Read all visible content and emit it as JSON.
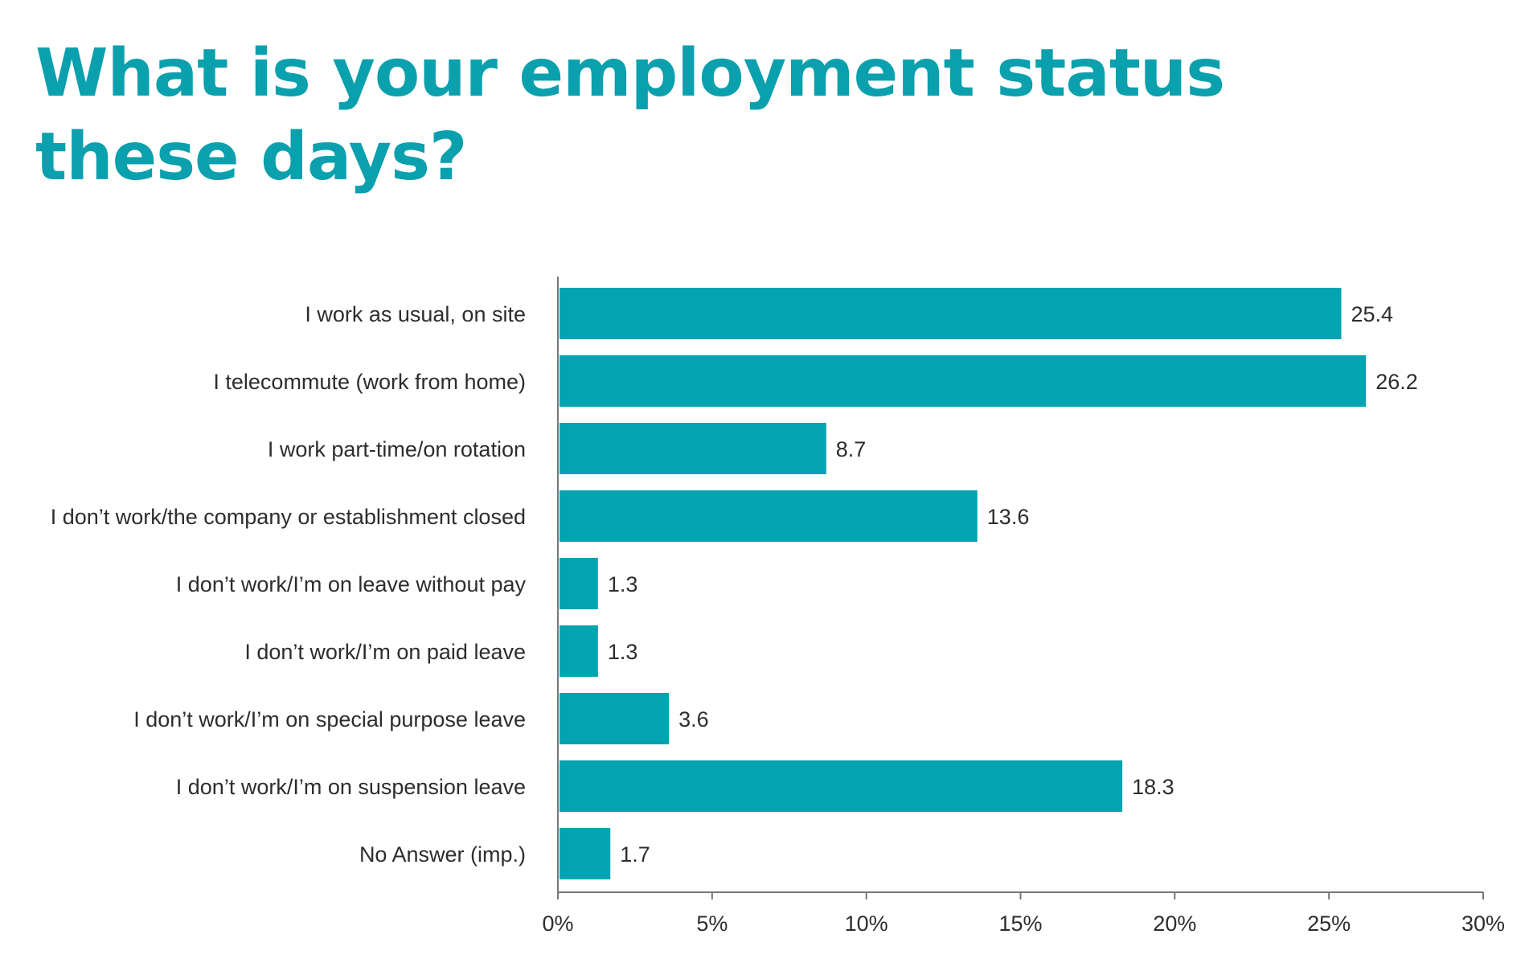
{
  "colors": {
    "accent": "#03a3b1",
    "title": "#0aa0ad",
    "text": "#2d2d2d",
    "axis": "#777777"
  },
  "title_lines": [
    "What is your employment status",
    "these days?"
  ],
  "chart_data": {
    "type": "bar",
    "orientation": "horizontal",
    "title": "What is your employment status these days?",
    "xlabel": "",
    "ylabel": "",
    "categories": [
      "I work as usual, on site",
      "I telecommute (work from home)",
      "I work part-time/on rotation",
      "I don’t work/the company or establishment closed",
      "I don’t work/I’m on leave without pay",
      "I don’t work/I’m on paid leave",
      "I don’t work/I’m on special purpose leave",
      "I don’t work/I’m on suspension leave",
      "No Answer (imp.)"
    ],
    "values": [
      25.4,
      26.2,
      8.7,
      13.6,
      1.3,
      1.3,
      3.6,
      18.3,
      1.7
    ],
    "value_labels": [
      "25.4",
      "26.2",
      "8.7",
      "13.6",
      "1.3",
      "1.3",
      "3.6",
      "18.3",
      "1.7"
    ],
    "xlim": [
      0,
      30
    ],
    "x_ticks": [
      0,
      5,
      10,
      15,
      20,
      25,
      30
    ],
    "x_tick_labels": [
      "0%",
      "5%",
      "10%",
      "15%",
      "20%",
      "25%",
      "30%"
    ],
    "grid": false,
    "legend": "none"
  }
}
